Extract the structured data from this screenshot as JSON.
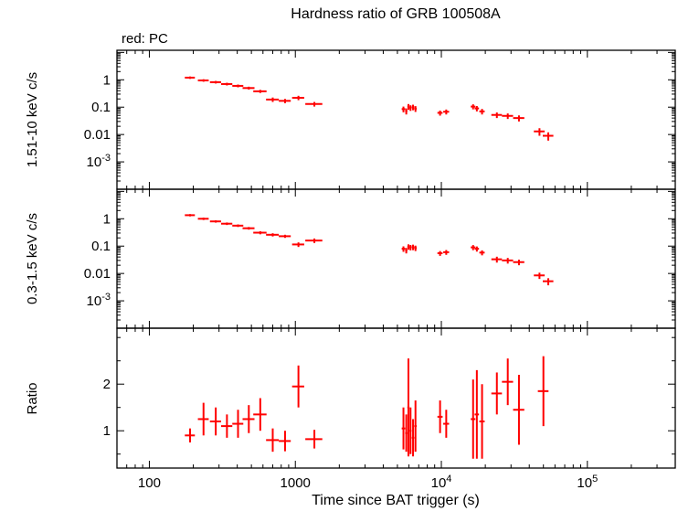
{
  "chart_data": {
    "type": "scatter",
    "subtype": "errorbar",
    "title": "Hardness ratio of GRB 100508A",
    "annotation": "red: PC",
    "xlabel": "Time since BAT trigger (s)",
    "x_scale": "log",
    "xlim": [
      60,
      400000
    ],
    "xticks": [
      {
        "value": 100,
        "label": "100"
      },
      {
        "value": 1000,
        "label": "1000"
      },
      {
        "value": 10000,
        "label": "10^4"
      },
      {
        "value": 100000,
        "label": "10^5"
      }
    ],
    "series_color": "#ff0000",
    "legend_position": "top-left",
    "grid": false,
    "panels": [
      {
        "name": "hard-band",
        "ylabel": "1.51-10 keV c/s",
        "y_scale": "log",
        "ylim": [
          0.0001,
          12
        ],
        "yticks": [
          {
            "value": 1,
            "label": "1"
          },
          {
            "value": 0.1,
            "label": "0.1"
          },
          {
            "value": 0.01,
            "label": "0.01"
          },
          {
            "value": 0.001,
            "label": "10^-3"
          }
        ],
        "points": {
          "t": [
            190,
            235,
            285,
            340,
            405,
            480,
            575,
            700,
            850,
            1050,
            1350,
            5500,
            5750,
            5950,
            6150,
            6400,
            6650,
            9800,
            10800,
            16500,
            17500,
            19000,
            24000,
            28500,
            34000,
            47000,
            54000
          ],
          "t_err": [
            15,
            20,
            25,
            30,
            35,
            45,
            60,
            70,
            80,
            100,
            180,
            150,
            100,
            100,
            100,
            120,
            130,
            400,
            500,
            600,
            600,
            800,
            2000,
            2500,
            3000,
            4000,
            4500
          ],
          "y": [
            1.2,
            0.95,
            0.82,
            0.7,
            0.6,
            0.5,
            0.38,
            0.19,
            0.17,
            0.22,
            0.13,
            0.085,
            0.072,
            0.105,
            0.095,
            0.1,
            0.088,
            0.062,
            0.068,
            0.105,
            0.09,
            0.07,
            0.052,
            0.048,
            0.04,
            0.013,
            0.009
          ],
          "y_err": [
            0.12,
            0.1,
            0.09,
            0.08,
            0.07,
            0.06,
            0.05,
            0.035,
            0.03,
            0.04,
            0.025,
            0.02,
            0.018,
            0.025,
            0.022,
            0.023,
            0.021,
            0.013,
            0.014,
            0.022,
            0.02,
            0.016,
            0.012,
            0.011,
            0.01,
            0.004,
            0.003
          ]
        }
      },
      {
        "name": "soft-band",
        "ylabel": "0.3-1.5 keV c/s",
        "y_scale": "log",
        "ylim": [
          0.0001,
          12
        ],
        "yticks": [
          {
            "value": 1,
            "label": "1"
          },
          {
            "value": 0.1,
            "label": "0.1"
          },
          {
            "value": 0.01,
            "label": "0.01"
          },
          {
            "value": 0.001,
            "label": "10^-3"
          }
        ],
        "points": {
          "t": [
            190,
            235,
            285,
            340,
            405,
            480,
            575,
            700,
            850,
            1050,
            1350,
            5500,
            5750,
            5950,
            6150,
            6400,
            6650,
            9800,
            10800,
            16500,
            17500,
            19000,
            24000,
            28500,
            34000,
            47000,
            54000
          ],
          "t_err": [
            15,
            20,
            25,
            30,
            35,
            45,
            60,
            70,
            80,
            100,
            180,
            150,
            100,
            100,
            100,
            120,
            130,
            400,
            500,
            600,
            600,
            800,
            2000,
            2500,
            3000,
            4000,
            4500
          ],
          "y": [
            1.35,
            1.0,
            0.8,
            0.66,
            0.56,
            0.45,
            0.31,
            0.26,
            0.23,
            0.115,
            0.16,
            0.08,
            0.07,
            0.095,
            0.09,
            0.092,
            0.085,
            0.055,
            0.06,
            0.09,
            0.08,
            0.058,
            0.033,
            0.03,
            0.026,
            0.0085,
            0.0052
          ],
          "y_err": [
            0.13,
            0.1,
            0.08,
            0.07,
            0.06,
            0.05,
            0.04,
            0.035,
            0.03,
            0.022,
            0.03,
            0.018,
            0.016,
            0.021,
            0.02,
            0.021,
            0.019,
            0.011,
            0.012,
            0.019,
            0.017,
            0.012,
            0.008,
            0.007,
            0.006,
            0.0022,
            0.0015
          ]
        }
      },
      {
        "name": "ratio",
        "ylabel": "Ratio",
        "y_scale": "linear",
        "ylim": [
          0.2,
          3.2
        ],
        "yticks": [
          {
            "value": 1,
            "label": "1"
          },
          {
            "value": 2,
            "label": "2"
          }
        ],
        "minor_yticks": [
          0.5,
          1.5,
          2.5,
          3
        ],
        "points": {
          "t": [
            190,
            235,
            285,
            340,
            405,
            480,
            575,
            700,
            850,
            1050,
            1350,
            5500,
            5750,
            5950,
            6150,
            6400,
            6650,
            9800,
            10800,
            16500,
            17500,
            19000,
            24000,
            28500,
            34000,
            50000
          ],
          "t_err": [
            15,
            20,
            25,
            30,
            35,
            45,
            60,
            70,
            80,
            100,
            180,
            150,
            100,
            100,
            100,
            120,
            130,
            400,
            500,
            600,
            600,
            800,
            2000,
            2500,
            3000,
            4200
          ],
          "y": [
            0.9,
            1.25,
            1.2,
            1.1,
            1.15,
            1.25,
            1.35,
            0.8,
            0.78,
            1.95,
            0.82,
            1.05,
            0.95,
            1.5,
            1.0,
            0.85,
            1.1,
            1.3,
            1.15,
            1.25,
            1.35,
            1.2,
            1.8,
            2.05,
            1.45,
            1.85
          ],
          "y_err": [
            0.15,
            0.35,
            0.3,
            0.25,
            0.3,
            0.3,
            0.35,
            0.25,
            0.22,
            0.45,
            0.2,
            0.45,
            0.4,
            1.05,
            0.5,
            0.4,
            0.55,
            0.35,
            0.3,
            0.85,
            0.95,
            0.8,
            0.45,
            0.5,
            0.75,
            0.75
          ]
        }
      }
    ]
  }
}
